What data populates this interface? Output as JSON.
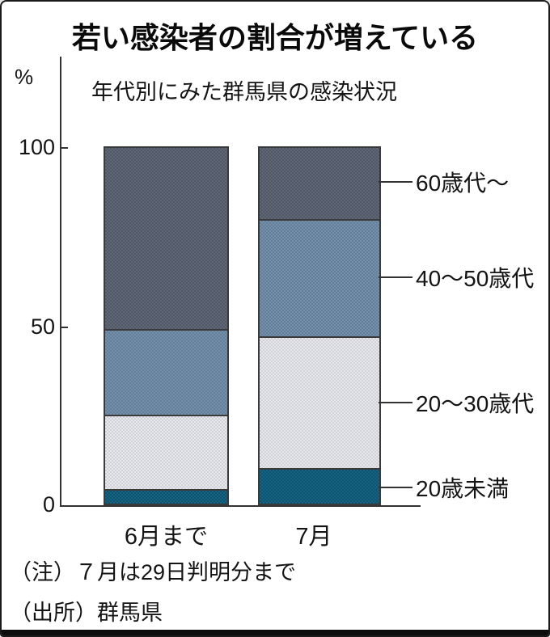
{
  "title": "若い感染者の割合が増えている",
  "subtitle": "年代別にみた群馬県の感染状況",
  "y_axis": {
    "unit": "%",
    "tick_100": "100",
    "tick_50": "50",
    "tick_0": "0"
  },
  "notes": {
    "line1": "（注）７月は29日判明分まで",
    "line2": "（出所）群馬県"
  },
  "chart_data": {
    "type": "bar",
    "stacked": true,
    "title": "若い感染者の割合が増えている",
    "subtitle": "年代別にみた群馬県の感染状況",
    "categories": [
      "6月まで",
      "7月"
    ],
    "series": [
      {
        "name": "20歳未満",
        "color": "#0b5a78",
        "values": [
          4,
          10
        ]
      },
      {
        "name": "20〜30歳代",
        "color": "#e6e6eb",
        "values": [
          21,
          37
        ]
      },
      {
        "name": "40〜50歳代",
        "color": "#6e8aa7",
        "values": [
          24,
          33
        ]
      },
      {
        "name": "60歳代〜",
        "color": "#575f6e",
        "values": [
          51,
          20
        ]
      }
    ],
    "ylabel": "%",
    "ylim": [
      0,
      100
    ],
    "grid": false,
    "legend_position": "right-leaders",
    "segment_border_color": "#3a3a3a"
  }
}
